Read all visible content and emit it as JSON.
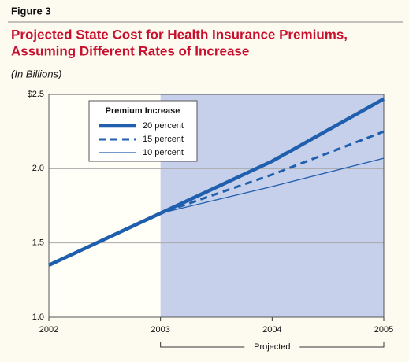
{
  "chart_data": {
    "type": "line",
    "figure_label": "Figure 3",
    "title": [
      "Projected State Cost for Health Insurance Premiums,",
      "Assuming Different Rates of Increase"
    ],
    "y_label": "(In Billions)",
    "legend_title": "Premium Increase",
    "x": [
      2002,
      2003,
      2004,
      2005
    ],
    "xlim": [
      2002,
      2005
    ],
    "xticks": [
      2002,
      2003,
      2004,
      2005
    ],
    "ylim": [
      1.0,
      2.5
    ],
    "yticks": [
      {
        "value": 1.0,
        "label": "1.0"
      },
      1.5,
      {
        "value": 2.0,
        "label": "2.0"
      },
      {
        "value": 2.5,
        "label": "$2.5"
      }
    ],
    "grid": true,
    "projected_range": [
      2003,
      2005
    ],
    "projected_label": "Projected",
    "series": [
      {
        "name": "20 percent",
        "color": "#1f5fad",
        "line_style": "solid",
        "line_width": 4.5,
        "values": [
          1.35,
          1.7,
          2.05,
          2.47
        ]
      },
      {
        "name": "15 percent",
        "color": "#1f5fad",
        "line_style": "dashed",
        "line_width": 3,
        "values": [
          1.35,
          1.7,
          1.96,
          2.25
        ]
      },
      {
        "name": "10 percent",
        "color": "#1f5fad",
        "line_style": "solid",
        "line_width": 1.3,
        "values": [
          1.35,
          1.7,
          1.88,
          2.07
        ]
      }
    ]
  }
}
